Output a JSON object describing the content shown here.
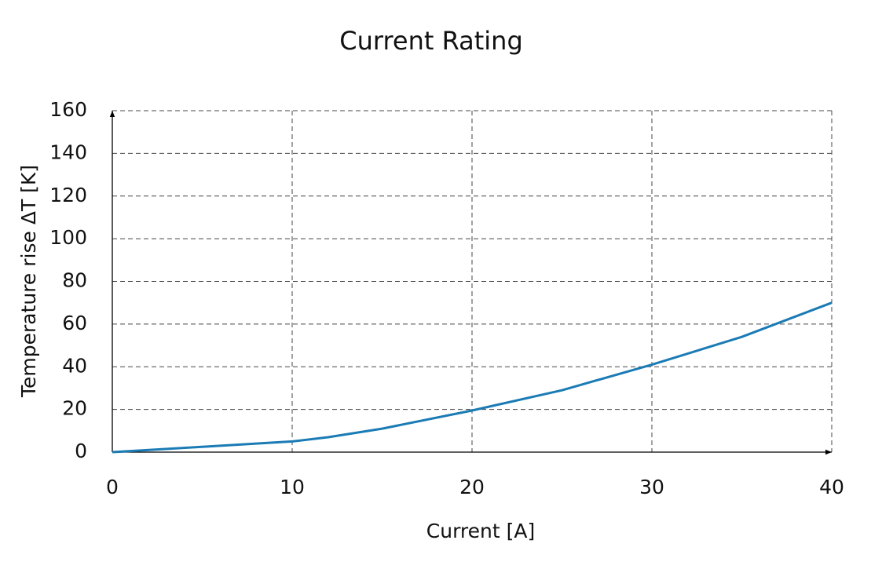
{
  "chart_data": {
    "type": "line",
    "title": "Current Rating",
    "x_label": "Current [A]",
    "y_label": "Temperature rise ΔT [K]",
    "series": [
      {
        "color": "#1a7bb5",
        "x": [
          0,
          5,
          10,
          12,
          15,
          20,
          25,
          30,
          35,
          40
        ],
        "values": [
          0,
          2.5,
          5,
          7,
          11,
          19.5,
          29,
          41,
          54,
          70
        ]
      }
    ],
    "xlim": [
      0,
      40
    ],
    "xticks": [
      0,
      10,
      20,
      30,
      40
    ],
    "ylim": [
      0,
      160
    ],
    "yticks": [
      0,
      20,
      40,
      60,
      80,
      100,
      120,
      140,
      160
    ],
    "grid": true
  }
}
